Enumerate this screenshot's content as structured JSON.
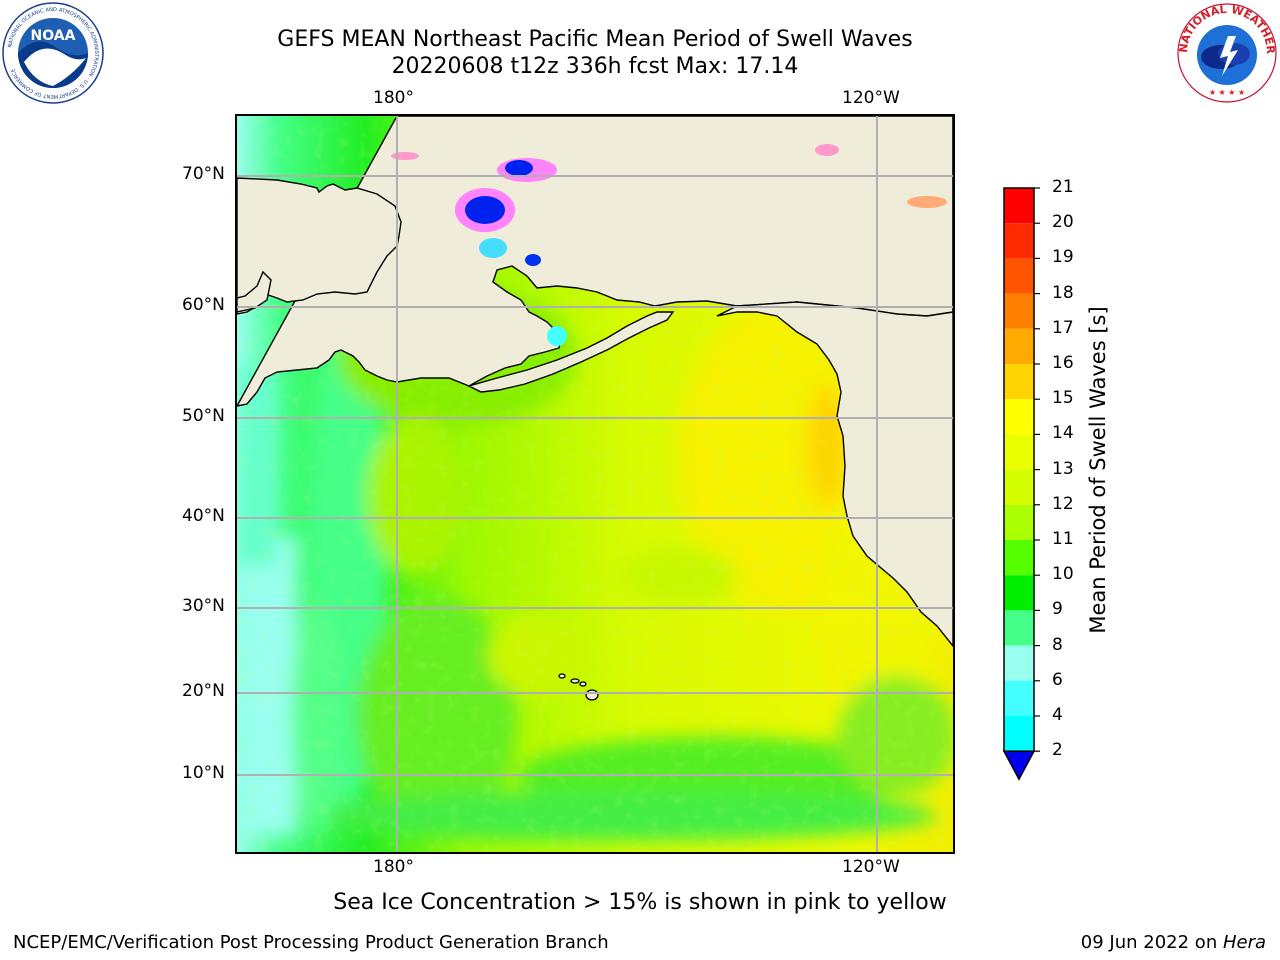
{
  "header": {
    "title_line1": "GEFS MEAN Northeast Pacific Mean Period of Swell Waves",
    "title_line2": "20220608 t12z 336h fcst   Max: 17.14"
  },
  "logos": {
    "noaa_text": "NOAA",
    "noaa_ring_text": "NATIONAL OCEANIC AND ATMOSPHERIC ADMINISTRATION · U.S. DEPARTMENT OF COMMERCE",
    "nws_ring_text": "NATIONAL WEATHER SERVICE"
  },
  "map": {
    "lon_labels_top": [
      "180°",
      "120°W"
    ],
    "lon_labels_bottom": [
      "180°",
      "120°W"
    ],
    "lat_labels": [
      "70°N",
      "60°N",
      "50°N",
      "40°N",
      "30°N",
      "20°N",
      "10°N"
    ],
    "land_color": "#efedda",
    "grid_color": "#b0b0b0"
  },
  "colorbar": {
    "title": "Mean Period of Swell Waves [s]",
    "labels": [
      "21",
      "20",
      "19",
      "18",
      "17",
      "16",
      "15",
      "14",
      "13",
      "12",
      "11",
      "10",
      "9",
      "8",
      "6",
      "4",
      "2"
    ],
    "colors": [
      "#ff0000",
      "#ff2a00",
      "#ff5500",
      "#ff7f00",
      "#ffaa00",
      "#ffd400",
      "#ffff00",
      "#eaff00",
      "#d4ff00",
      "#aaff00",
      "#55ff00",
      "#00ee00",
      "#44ff88",
      "#99ffee",
      "#44ffff",
      "#00ffff",
      "#00bbff",
      "#0066ff"
    ],
    "extend_color": "#0000ee"
  },
  "note": "Sea Ice Concentration > 15% is shown in pink to yellow",
  "footer": {
    "left": "NCEP/EMC/Verification Post Processing Product Generation Branch",
    "date": "09 Jun 2022 on ",
    "machine": "Hera"
  }
}
